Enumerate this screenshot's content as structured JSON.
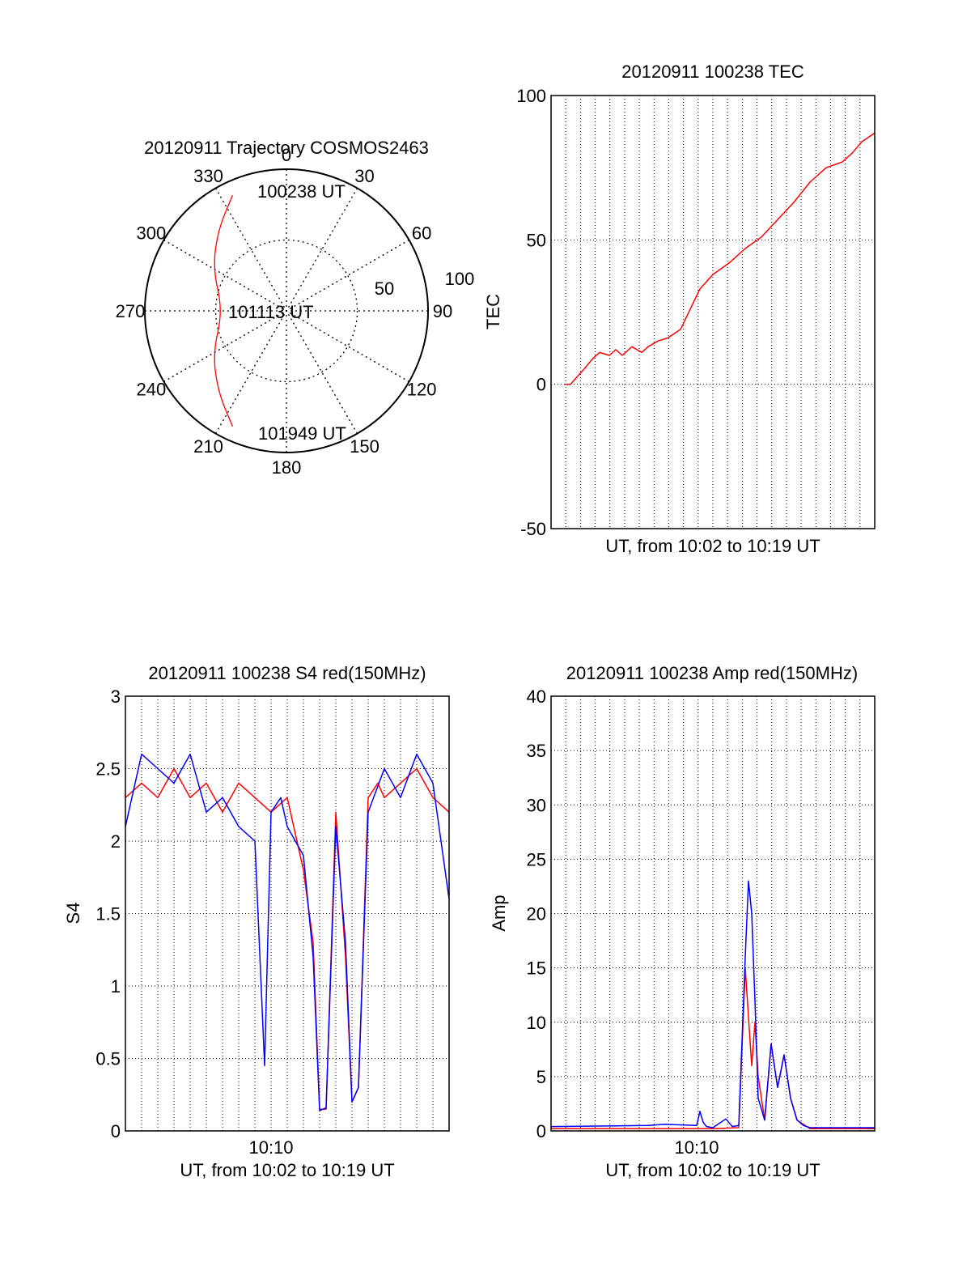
{
  "colors": {
    "red": "#ff0000",
    "blue": "#0000ff",
    "frame": "#000000",
    "grid": "#000000"
  },
  "chart_data": [
    {
      "id": "trajectory",
      "type": "polar",
      "title": "20120911 Trajectory COSMOS2463",
      "azimuth_labels": [
        "0",
        "30",
        "60",
        "90",
        "120",
        "150",
        "180",
        "210",
        "240",
        "270",
        "300",
        "330"
      ],
      "radius_labels": [
        "50",
        "100"
      ],
      "rlim": [
        0,
        100
      ],
      "start_label": "100238 UT",
      "mid_label": "101113 UT",
      "end_label": "101949 UT",
      "track": [
        {
          "az": 335,
          "zen": 90
        },
        {
          "az": 320,
          "zen": 75
        },
        {
          "az": 300,
          "zen": 60
        },
        {
          "az": 270,
          "zen": 45
        },
        {
          "az": 240,
          "zen": 60
        },
        {
          "az": 220,
          "zen": 75
        },
        {
          "az": 205,
          "zen": 90
        }
      ],
      "grid": true
    },
    {
      "id": "tec",
      "type": "line",
      "title": "20120911 100238 TEC",
      "xlabel": "UT, from 10:02 to 10:19 UT",
      "ylabel": "TEC",
      "ylim": [
        -50,
        100
      ],
      "yticks": [
        "100",
        "50",
        "0",
        "-50"
      ],
      "xlim": [
        0,
        1
      ],
      "grid": true,
      "series": [
        {
          "color": "#ff0000",
          "x": [
            0.04,
            0.06,
            0.1,
            0.13,
            0.15,
            0.18,
            0.2,
            0.22,
            0.25,
            0.28,
            0.3,
            0.33,
            0.36,
            0.4,
            0.43,
            0.46,
            0.5,
            0.55,
            0.6,
            0.65,
            0.7,
            0.75,
            0.8,
            0.85,
            0.9,
            0.93,
            0.96,
            1.0
          ],
          "y": [
            0,
            0,
            5,
            9,
            11,
            10,
            12,
            10,
            13,
            11,
            13,
            15,
            16,
            19,
            26,
            33,
            38,
            42,
            47,
            51,
            57,
            63,
            70,
            75,
            77,
            80,
            84,
            87
          ]
        }
      ]
    },
    {
      "id": "s4",
      "type": "line",
      "title": "20120911 100238 S4 red(150MHz)",
      "xlabel": "UT, from 10:02 to 10:19 UT",
      "ylabel": "S4",
      "xtick_label": "10:10",
      "xtick_pos": 0.45,
      "ylim": [
        0,
        3
      ],
      "yticks": [
        "3",
        "2.5",
        "2",
        "1.5",
        "1",
        "0.5",
        "0"
      ],
      "xlim": [
        0,
        1
      ],
      "grid": true,
      "series": [
        {
          "color": "#ff0000",
          "x": [
            0.0,
            0.05,
            0.1,
            0.15,
            0.2,
            0.25,
            0.3,
            0.35,
            0.4,
            0.45,
            0.5,
            0.55,
            0.58,
            0.6,
            0.62,
            0.65,
            0.68,
            0.7,
            0.72,
            0.75,
            0.78,
            0.8,
            0.85,
            0.9,
            0.95,
            1.0
          ],
          "y": [
            2.3,
            2.4,
            2.3,
            2.5,
            2.3,
            2.4,
            2.2,
            2.4,
            2.3,
            2.2,
            2.3,
            1.8,
            1.3,
            0.15,
            0.15,
            2.2,
            1.2,
            0.2,
            0.3,
            2.3,
            2.4,
            2.3,
            2.4,
            2.5,
            2.3,
            2.2
          ]
        },
        {
          "color": "#0000ff",
          "x": [
            0.0,
            0.05,
            0.1,
            0.15,
            0.2,
            0.25,
            0.3,
            0.35,
            0.4,
            0.43,
            0.45,
            0.48,
            0.5,
            0.55,
            0.58,
            0.6,
            0.62,
            0.65,
            0.68,
            0.7,
            0.72,
            0.75,
            0.8,
            0.85,
            0.9,
            0.95,
            1.0
          ],
          "y": [
            2.1,
            2.6,
            2.5,
            2.4,
            2.6,
            2.2,
            2.3,
            2.1,
            2.0,
            0.45,
            2.2,
            2.3,
            2.1,
            1.9,
            1.2,
            0.14,
            0.16,
            2.1,
            1.3,
            0.2,
            0.3,
            2.2,
            2.5,
            2.3,
            2.6,
            2.4,
            1.6
          ]
        }
      ]
    },
    {
      "id": "amp",
      "type": "line",
      "title": "20120911 100238 Amp red(150MHz)",
      "xlabel": "UT, from 10:02 to 10:19 UT",
      "ylabel": "Amp",
      "xtick_label": "10:10",
      "xtick_pos": 0.45,
      "ylim": [
        0,
        40
      ],
      "yticks": [
        "40",
        "35",
        "30",
        "25",
        "20",
        "15",
        "10",
        "5",
        "0"
      ],
      "xlim": [
        0,
        1
      ],
      "grid": true,
      "series": [
        {
          "color": "#ff0000",
          "x": [
            0.0,
            0.5,
            0.58,
            0.6,
            0.62,
            0.63,
            0.64,
            0.66,
            0.68,
            0.7,
            0.72,
            0.74,
            0.76,
            0.8,
            1.0
          ],
          "y": [
            0.2,
            0.2,
            0.3,
            15,
            6,
            10,
            5,
            1,
            8,
            4,
            7,
            3,
            1,
            0.2,
            0.2
          ]
        },
        {
          "color": "#0000ff",
          "x": [
            0.0,
            0.3,
            0.35,
            0.45,
            0.46,
            0.47,
            0.48,
            0.5,
            0.54,
            0.56,
            0.58,
            0.6,
            0.61,
            0.62,
            0.63,
            0.64,
            0.66,
            0.68,
            0.7,
            0.72,
            0.74,
            0.76,
            0.78,
            0.8,
            1.0
          ],
          "y": [
            0.4,
            0.5,
            0.6,
            0.5,
            1.8,
            0.8,
            0.4,
            0.3,
            1.1,
            0.4,
            0.5,
            16,
            23,
            20,
            12,
            3,
            1,
            8,
            4,
            7,
            3,
            1,
            0.5,
            0.3,
            0.3
          ]
        }
      ]
    }
  ]
}
